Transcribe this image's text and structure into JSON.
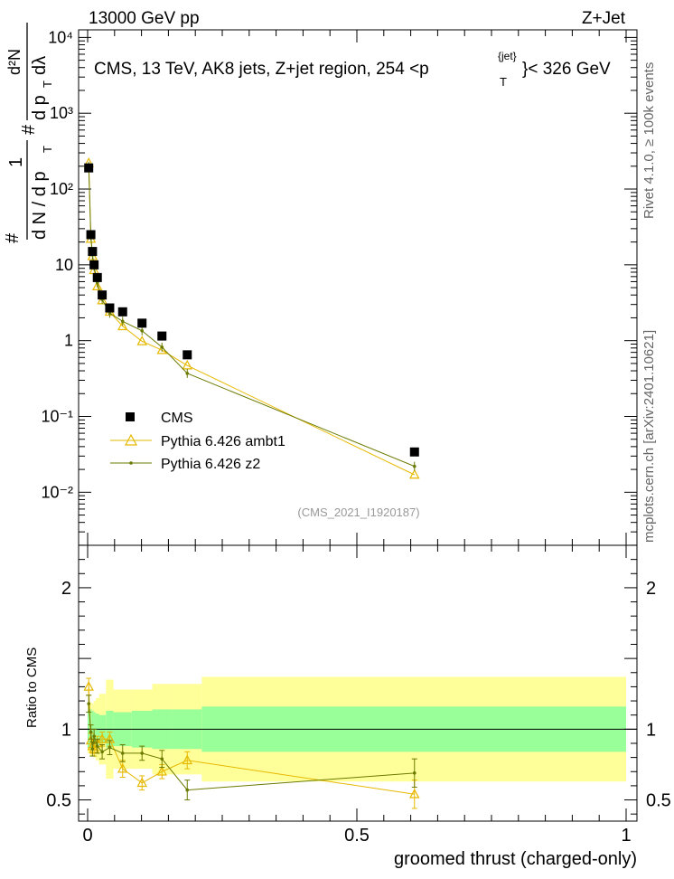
{
  "header": {
    "left": "13000 GeV pp",
    "right": "Z+Jet"
  },
  "side_text": {
    "rivet": "Rivet 4.1.0, ≥ 100k events",
    "mcplots": "mcplots.cern.ch [arXiv:2401.10621]"
  },
  "watermark": "(CMS_2021_I1920187)",
  "title": {
    "main": "CMS, 13 TeV, AK8 jets, Z+jet region, 254 <p",
    "sup": "{jet}",
    "sub": "T",
    "tail": "}< 326 GeV"
  },
  "ylabel": {
    "frac_top": "1",
    "frac_bottom": "d N / d p",
    "frac_bottom_sub": "T",
    "hash1": "#",
    "d2n_top": "d²N",
    "d2n_bottom": "d p",
    "d2n_bottom_sub": "T",
    "dl": " dλ",
    "hash2": "#"
  },
  "ratio_ylabel": "Ratio to CMS",
  "xlabel": "groomed thrust (charged-only)",
  "colors": {
    "cms": "#000000",
    "ambt1": "#e6b800",
    "z2": "#6b7a00",
    "band_outer": "#ffff99",
    "band_inner": "#99ff99"
  },
  "chart_data": {
    "type": "scatter",
    "xlim": [
      0.0,
      1.0
    ],
    "main_ylim_log10": [
      -2.7,
      4.1
    ],
    "ratio_ylim": [
      0.35,
      2.3
    ],
    "xticks": [
      {
        "v": 0,
        "label": "0"
      },
      {
        "v": 0.5,
        "label": "0.5"
      },
      {
        "v": 1,
        "label": "1"
      }
    ],
    "yticks_main": [
      {
        "e": -2,
        "label": "10⁻²"
      },
      {
        "e": -1,
        "label": "10⁻¹"
      },
      {
        "e": 0,
        "label": "1"
      },
      {
        "e": 1,
        "label": "10"
      },
      {
        "e": 2,
        "label": "10²"
      },
      {
        "e": 3,
        "label": "10³"
      },
      {
        "e": 4,
        "label": "10⁴"
      }
    ],
    "yticks_ratio": [
      {
        "v": 0.5,
        "label": "0.5"
      },
      {
        "v": 1,
        "label": "1"
      },
      {
        "v": 2,
        "label": "2"
      }
    ],
    "legend": [
      {
        "key": "cms",
        "label": "CMS"
      },
      {
        "key": "ambt1",
        "label": "Pythia 6.426 ambt1"
      },
      {
        "key": "z2",
        "label": "Pythia 6.426 z2"
      }
    ],
    "series": {
      "cms": {
        "name": "CMS",
        "x": [
          0.002,
          0.006,
          0.009,
          0.012,
          0.018,
          0.027,
          0.041,
          0.065,
          0.101,
          0.138,
          0.185,
          0.607
        ],
        "y": [
          190,
          25,
          15,
          10,
          6.8,
          4.0,
          2.7,
          2.4,
          1.7,
          1.15,
          0.65,
          0.034
        ]
      },
      "ambt1": {
        "name": "Pythia 6.426 ambt1",
        "x": [
          0.002,
          0.006,
          0.009,
          0.012,
          0.018,
          0.027,
          0.041,
          0.065,
          0.101,
          0.138,
          0.185,
          0.607
        ],
        "y": [
          220,
          22,
          13,
          8.5,
          5.2,
          3.4,
          2.4,
          1.55,
          0.98,
          0.75,
          0.47,
          0.017
        ]
      },
      "z2": {
        "name": "Pythia 6.426 z2",
        "x": [
          0.002,
          0.006,
          0.009,
          0.012,
          0.018,
          0.027,
          0.041,
          0.065,
          0.101,
          0.138,
          0.185,
          0.607
        ],
        "y": [
          200,
          24,
          13.5,
          9.5,
          5.8,
          3.5,
          2.3,
          1.8,
          1.35,
          0.82,
          0.37,
          0.022
        ]
      }
    },
    "ratio": {
      "band_bins": [
        0.0,
        0.004,
        0.008,
        0.011,
        0.015,
        0.021,
        0.034,
        0.048,
        0.082,
        0.12,
        0.157,
        0.212,
        1.0
      ],
      "band_inner": [
        0.13,
        0.14,
        0.13,
        0.12,
        0.11,
        0.1,
        0.13,
        0.12,
        0.13,
        0.14,
        0.14,
        0.16
      ],
      "band_outer": [
        0.17,
        0.19,
        0.18,
        0.2,
        0.22,
        0.25,
        0.35,
        0.28,
        0.28,
        0.32,
        0.32,
        0.37
      ],
      "ambt1": {
        "x": [
          0.002,
          0.006,
          0.009,
          0.012,
          0.018,
          0.027,
          0.041,
          0.065,
          0.101,
          0.138,
          0.185,
          0.607
        ],
        "y": [
          1.3,
          0.92,
          0.88,
          0.86,
          0.9,
          0.93,
          0.93,
          0.72,
          0.62,
          0.7,
          0.78,
          0.54
        ],
        "err": [
          0.06,
          0.05,
          0.05,
          0.05,
          0.05,
          0.05,
          0.05,
          0.06,
          0.05,
          0.05,
          0.06,
          0.1
        ]
      },
      "z2": {
        "x": [
          0.002,
          0.006,
          0.009,
          0.012,
          0.018,
          0.027,
          0.041,
          0.065,
          0.101,
          0.138,
          0.185,
          0.607
        ],
        "y": [
          1.18,
          0.98,
          0.86,
          0.95,
          0.88,
          0.84,
          0.87,
          0.83,
          0.83,
          0.79,
          0.57,
          0.69
        ],
        "err": [
          0.06,
          0.05,
          0.05,
          0.05,
          0.05,
          0.05,
          0.05,
          0.06,
          0.05,
          0.06,
          0.07,
          0.1
        ]
      }
    }
  }
}
